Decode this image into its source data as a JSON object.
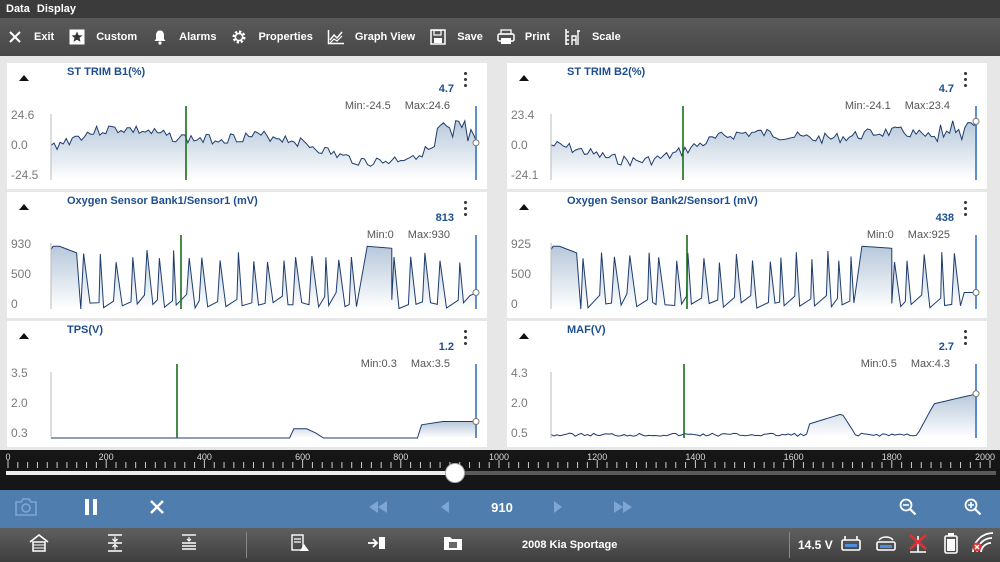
{
  "window": {
    "title_part1": "Data",
    "title_part2": "Display"
  },
  "toolbar": {
    "items": [
      {
        "label": "Exit",
        "icon": "close-icon"
      },
      {
        "label": "Custom",
        "icon": "star-icon"
      },
      {
        "label": "Alarms",
        "icon": "bell-icon"
      },
      {
        "label": "Properties",
        "icon": "gear-icon"
      },
      {
        "label": "Graph View",
        "icon": "graph-icon"
      },
      {
        "label": "Save",
        "icon": "floppy-icon"
      },
      {
        "label": "Print",
        "icon": "printer-icon"
      },
      {
        "label": "Scale",
        "icon": "scale-icon"
      }
    ]
  },
  "panels": [
    {
      "title": "ST TRIM B1(%)",
      "value": "4.7",
      "min_label": "Min:-24.5",
      "max_label": "Max:24.6",
      "y_max": "24.6",
      "y_mid": "0.0",
      "y_min": "-24.5",
      "trace_color": "#1e3d6e",
      "fill_color": "#b7c8db"
    },
    {
      "title": "ST TRIM B2(%)",
      "value": "4.7",
      "min_label": "Min:-24.1",
      "max_label": "Max:23.4",
      "y_max": "23.4",
      "y_mid": "0.0",
      "y_min": "-24.1",
      "trace_color": "#1e3d6e",
      "fill_color": "#b7c8db"
    },
    {
      "title": "Oxygen Sensor Bank1/Sensor1 (mV)",
      "value": "813",
      "min_label": "Min:0",
      "max_label": "Max:930",
      "y_max": "930",
      "y_mid": "500",
      "y_min": "0",
      "trace_color": "#1e3d6e",
      "fill_color": "#b7c8db"
    },
    {
      "title": "Oxygen Sensor Bank2/Sensor1 (mV)",
      "value": "438",
      "min_label": "Min:0",
      "max_label": "Max:925",
      "y_max": "925",
      "y_mid": "500",
      "y_min": "0",
      "trace_color": "#1e3d6e",
      "fill_color": "#b7c8db"
    },
    {
      "title": "TPS(V)",
      "value": "1.2",
      "min_label": "Min:0.3",
      "max_label": "Max:3.5",
      "y_max": "3.5",
      "y_mid": "2.0",
      "y_min": "0.3",
      "trace_color": "#1e3d6e",
      "fill_color": "#b7c8db"
    },
    {
      "title": "MAF(V)",
      "value": "2.7",
      "min_label": "Min:0.5",
      "max_label": "Max:4.3",
      "y_max": "4.3",
      "y_mid": "2.0",
      "y_min": "0.5",
      "trace_color": "#1e3d6e",
      "fill_color": "#b7c8db"
    }
  ],
  "timeline": {
    "labels": [
      "0",
      "200",
      "400",
      "600",
      "800",
      "1000",
      "1200",
      "1400",
      "1600",
      "1800",
      "2000"
    ],
    "min": 0,
    "max": 2000,
    "position": 910
  },
  "playback": {
    "frame": "910",
    "buttons": [
      "camera-icon",
      "pause-icon",
      "stop-icon",
      "rewind-icon",
      "step-back-icon",
      "step-forward-icon",
      "fast-forward-icon",
      "zoom-out-icon",
      "zoom-in-icon"
    ]
  },
  "status": {
    "vehicle": "2008 Kia Sportage",
    "voltage": "14.5 V",
    "icons": [
      "home-icon",
      "collapse-icon",
      "list-icon",
      "vehicle-data-icon",
      "connect-icon",
      "folder-icon",
      "battery-connector-icon",
      "vci-icon",
      "no-signal-icon",
      "battery-icon",
      "wifi-off-icon"
    ]
  },
  "colors": {
    "marker": "#1a6e1a",
    "cursor": "#3a73c5",
    "accent": "#4f7dae"
  }
}
